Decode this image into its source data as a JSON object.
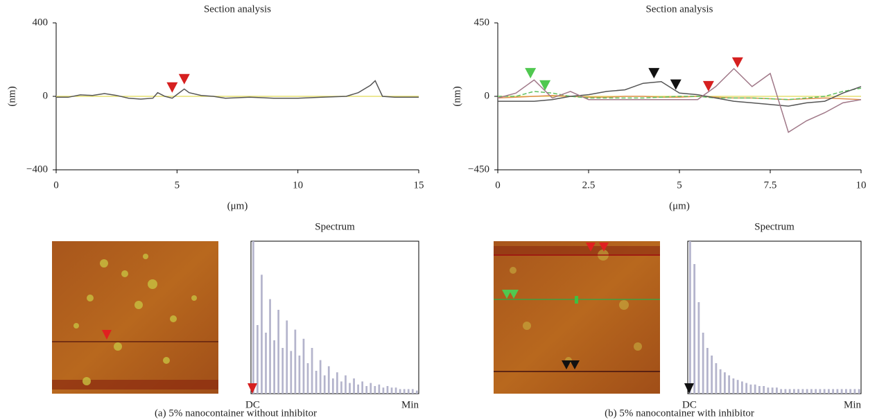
{
  "captions": [
    "(a)  5% nanocontainer without inhibitor",
    "(b)  5% nanocontainer with inhibitor"
  ],
  "chart_data": [
    {
      "type": "line",
      "title": "Section analysis",
      "xlabel": "(μm)",
      "ylabel": "(nm)",
      "xlim": [
        0,
        15
      ],
      "xticks": [
        0,
        5,
        10,
        15
      ],
      "ylim": [
        -400,
        400
      ],
      "yticks": [
        {
          "value": -400,
          "label": "−400"
        },
        0,
        400
      ],
      "x": [
        0,
        0.5,
        1,
        1.5,
        2,
        2.5,
        3,
        3.5,
        4,
        4.2,
        4.5,
        4.8,
        5,
        5.3,
        5.5,
        6,
        6.5,
        7,
        8,
        9,
        10,
        11,
        12,
        12.5,
        13,
        13.2,
        13.5,
        14,
        15
      ],
      "series": [
        {
          "color": "#e6e070",
          "values": [
            0,
            0,
            0,
            0,
            0,
            0,
            0,
            0,
            0,
            0,
            0,
            0,
            0,
            0,
            0,
            0,
            0,
            0,
            0,
            0,
            0,
            0,
            0,
            0,
            0,
            0,
            0,
            0,
            0
          ]
        },
        {
          "color": "#555555",
          "values": [
            -5,
            -5,
            8,
            5,
            15,
            5,
            -10,
            -15,
            -10,
            20,
            0,
            -10,
            10,
            40,
            20,
            5,
            0,
            -10,
            -5,
            -10,
            -10,
            -5,
            0,
            20,
            60,
            85,
            0,
            -5,
            -5
          ]
        }
      ],
      "markers": [
        {
          "x": 4.8,
          "y": 20,
          "color": "#d62020"
        },
        {
          "x": 5.3,
          "y": 65,
          "color": "#d62020"
        }
      ]
    },
    {
      "type": "line",
      "title": "Section analysis",
      "xlabel": "(μm)",
      "ylabel": "(nm)",
      "xlim": [
        0,
        10
      ],
      "xticks": [
        0,
        2.5,
        5,
        7.5,
        10
      ],
      "ylim": [
        -450,
        450
      ],
      "yticks": [
        {
          "value": -450,
          "label": "−450"
        },
        0,
        450
      ],
      "x": [
        0,
        0.5,
        1,
        1.5,
        2,
        2.5,
        3,
        3.5,
        4,
        4.5,
        5,
        5.5,
        6,
        6.5,
        7,
        7.5,
        8,
        8.5,
        9,
        9.5,
        10
      ],
      "series": [
        {
          "color": "#e6e070",
          "values": [
            0,
            0,
            0,
            0,
            0,
            0,
            0,
            0,
            0,
            0,
            0,
            0,
            0,
            0,
            0,
            0,
            0,
            0,
            0,
            0,
            0
          ]
        },
        {
          "color": "#e09050",
          "values": [
            -10,
            -5,
            0,
            5,
            0,
            -5,
            -5,
            0,
            0,
            -5,
            -5,
            0,
            -5,
            -10,
            -10,
            -15,
            -20,
            -15,
            -10,
            -15,
            -20
          ]
        },
        {
          "color": "#60c060",
          "dash": true,
          "values": [
            0,
            0,
            30,
            20,
            0,
            -10,
            -10,
            -10,
            -10,
            -5,
            0,
            0,
            -10,
            -10,
            -10,
            -15,
            -20,
            -10,
            0,
            30,
            50
          ]
        },
        {
          "color": "#555555",
          "values": [
            -30,
            -30,
            -30,
            -20,
            0,
            10,
            30,
            40,
            80,
            90,
            20,
            10,
            -10,
            -30,
            -40,
            -50,
            -60,
            -40,
            -30,
            20,
            60
          ]
        },
        {
          "color": "#a07888",
          "values": [
            -10,
            20,
            100,
            -10,
            30,
            -20,
            -20,
            -20,
            -20,
            -20,
            -20,
            -20,
            60,
            170,
            60,
            140,
            -220,
            -150,
            -100,
            -40,
            -20
          ]
        }
      ],
      "markers": [
        {
          "x": 0.9,
          "y": 110,
          "color": "#50c850"
        },
        {
          "x": 1.3,
          "y": 35,
          "color": "#50c850"
        },
        {
          "x": 4.3,
          "y": 110,
          "color": "#111111"
        },
        {
          "x": 4.9,
          "y": 40,
          "color": "#111111"
        },
        {
          "x": 5.8,
          "y": 30,
          "color": "#d62020"
        },
        {
          "x": 6.6,
          "y": 175,
          "color": "#d62020"
        }
      ]
    },
    {
      "type": "bar",
      "title": "Spectrum",
      "color": "#b4b4cc",
      "ylim": [
        0,
        100
      ],
      "categories": [
        "DC",
        null,
        null,
        null,
        null,
        null,
        null,
        null,
        null,
        null,
        null,
        null,
        null,
        null,
        null,
        null,
        null,
        null,
        null,
        null,
        null,
        null,
        null,
        null,
        null,
        null,
        null,
        null,
        null,
        null,
        null,
        null,
        null,
        null,
        null,
        null,
        null,
        null,
        null,
        "Min"
      ],
      "values": [
        100,
        45,
        78,
        40,
        62,
        35,
        55,
        30,
        48,
        28,
        42,
        25,
        36,
        20,
        30,
        15,
        22,
        12,
        18,
        10,
        14,
        8,
        12,
        7,
        10,
        6,
        8,
        5,
        7,
        5,
        6,
        4,
        5,
        4,
        4,
        3,
        3,
        3,
        3,
        2
      ],
      "markers": [
        {
          "x": 0,
          "color": "#d62020"
        }
      ]
    },
    {
      "type": "bar",
      "title": "Spectrum",
      "color": "#b4b4cc",
      "ylim": [
        0,
        100
      ],
      "categories": [
        "DC",
        null,
        null,
        null,
        null,
        null,
        null,
        null,
        null,
        null,
        null,
        null,
        null,
        null,
        null,
        null,
        null,
        null,
        null,
        null,
        null,
        null,
        null,
        null,
        null,
        null,
        null,
        null,
        null,
        null,
        null,
        null,
        null,
        null,
        null,
        null,
        null,
        null,
        null,
        "Min"
      ],
      "values": [
        100,
        85,
        60,
        40,
        30,
        25,
        20,
        16,
        14,
        12,
        10,
        9,
        8,
        7,
        6,
        6,
        5,
        5,
        4,
        4,
        4,
        3,
        3,
        3,
        3,
        3,
        3,
        3,
        3,
        3,
        3,
        3,
        3,
        3,
        3,
        3,
        3,
        3,
        3,
        3
      ],
      "markers": [
        {
          "x": 0,
          "color": "#111111"
        }
      ]
    }
  ]
}
